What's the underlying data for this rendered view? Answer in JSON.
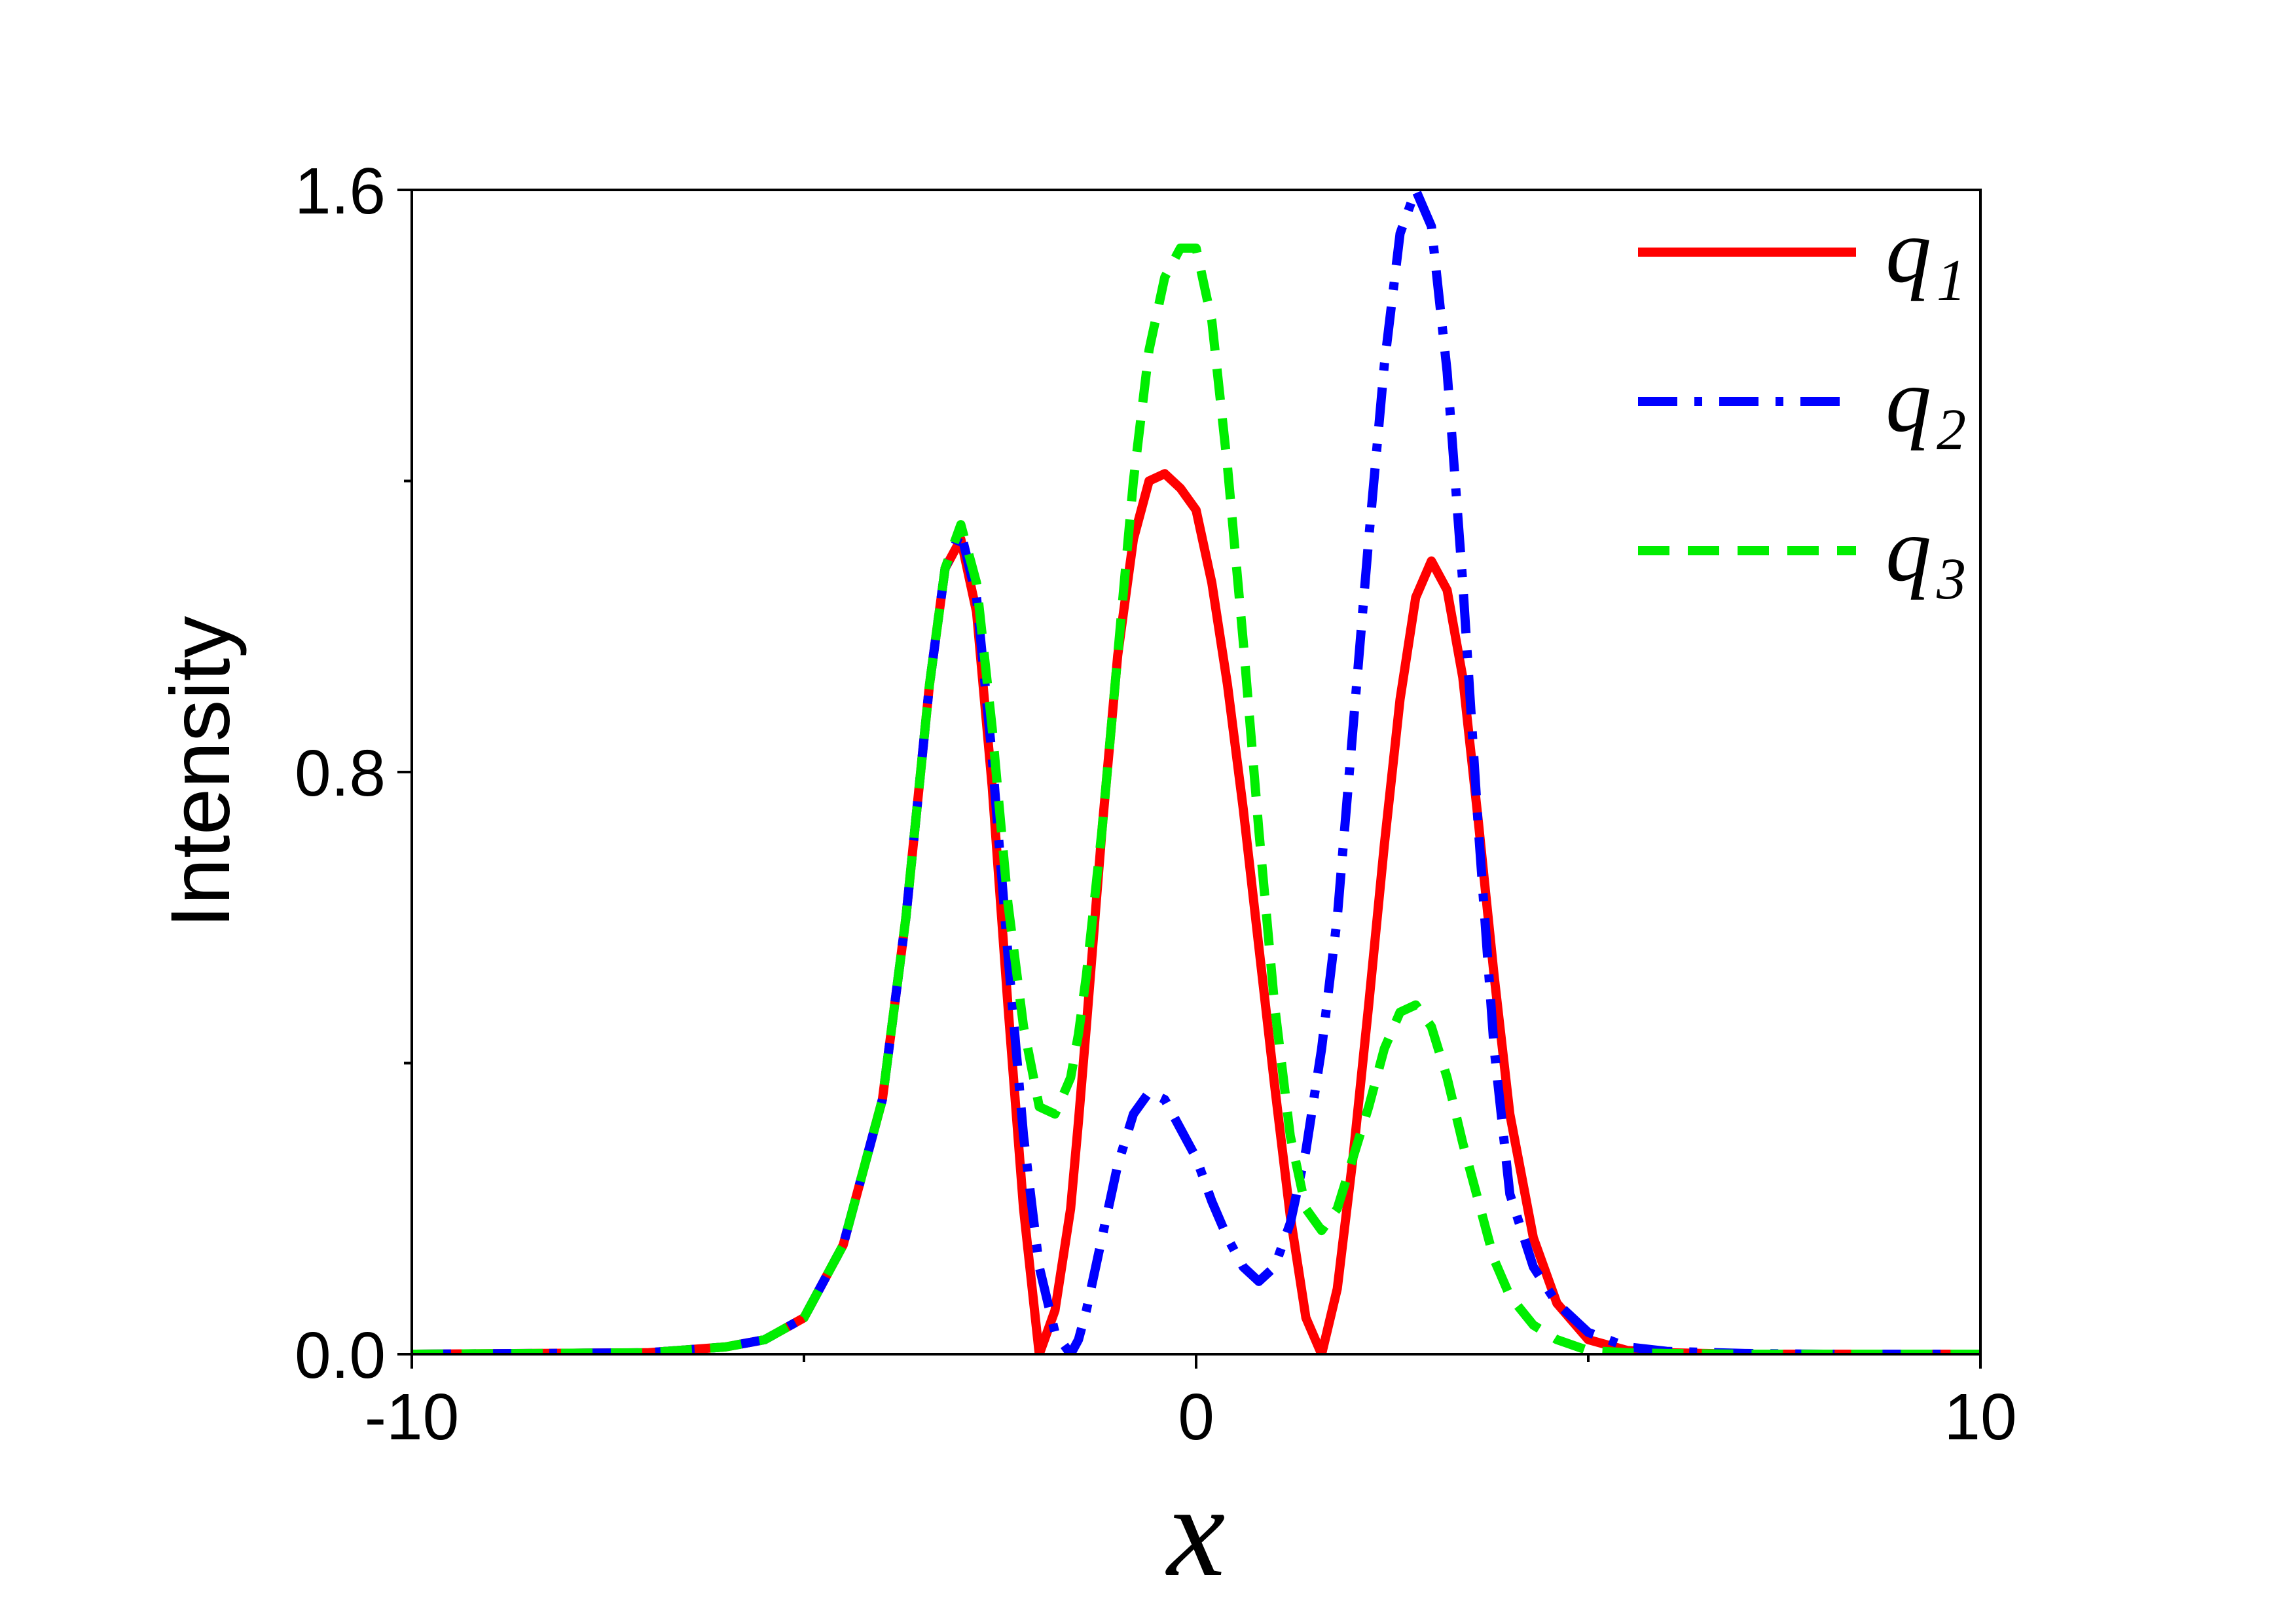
{
  "chart_data": {
    "type": "line",
    "xlabel": "x",
    "ylabel": "Intensity",
    "xlim": [
      -10,
      10
    ],
    "ylim": [
      0,
      1.6
    ],
    "x_ticks": [
      -10,
      0,
      10
    ],
    "x_minor_ticks": [
      -5,
      5
    ],
    "y_ticks": [
      0.0,
      0.8,
      1.6
    ],
    "y_tick_labels": [
      "0.0",
      "0.8",
      "1.6"
    ],
    "y_minor_ticks": [
      0.4,
      1.2
    ],
    "grid": false,
    "legend_position": "top-right",
    "x": [
      -10,
      -7,
      -6,
      -5.5,
      -5,
      -4.5,
      -4,
      -3.7,
      -3.4,
      -3.2,
      -3.0,
      -2.8,
      -2.6,
      -2.4,
      -2.2,
      -2.0,
      -1.8,
      -1.6,
      -1.5,
      -1.4,
      -1.2,
      -1.0,
      -0.8,
      -0.6,
      -0.4,
      -0.2,
      0.0,
      0.2,
      0.4,
      0.6,
      0.8,
      1.0,
      1.2,
      1.4,
      1.6,
      1.8,
      2.0,
      2.2,
      2.4,
      2.6,
      2.8,
      3.0,
      3.2,
      3.4,
      3.6,
      3.8,
      4.0,
      4.3,
      4.6,
      5.0,
      5.5,
      6.0,
      7.0,
      8.0,
      10.0
    ],
    "series": [
      {
        "name": "q1",
        "name_main": "q",
        "name_sub": "1",
        "color": "#ff0000",
        "dash": "solid",
        "values": [
          0.0,
          0.002,
          0.01,
          0.02,
          0.05,
          0.15,
          0.35,
          0.6,
          0.92,
          1.08,
          1.12,
          1.02,
          0.78,
          0.48,
          0.2,
          0.0,
          0.06,
          0.2,
          0.32,
          0.45,
          0.72,
          0.96,
          1.12,
          1.2,
          1.21,
          1.19,
          1.16,
          1.06,
          0.92,
          0.75,
          0.56,
          0.37,
          0.19,
          0.05,
          0.0,
          0.09,
          0.27,
          0.48,
          0.7,
          0.9,
          1.04,
          1.09,
          1.05,
          0.93,
          0.73,
          0.52,
          0.33,
          0.16,
          0.07,
          0.02,
          0.005,
          0.002,
          0.0,
          0.0,
          0.0
        ]
      },
      {
        "name": "q2",
        "name_main": "q",
        "name_sub": "2",
        "color": "#0000ff",
        "dash": "dashdot",
        "values": [
          0.0,
          0.002,
          0.01,
          0.02,
          0.05,
          0.15,
          0.35,
          0.6,
          0.92,
          1.08,
          1.13,
          1.04,
          0.82,
          0.55,
          0.3,
          0.12,
          0.03,
          0.0,
          0.02,
          0.06,
          0.16,
          0.26,
          0.33,
          0.36,
          0.35,
          0.31,
          0.27,
          0.21,
          0.16,
          0.12,
          0.1,
          0.12,
          0.18,
          0.28,
          0.42,
          0.6,
          0.86,
          1.12,
          1.36,
          1.54,
          1.6,
          1.55,
          1.35,
          1.06,
          0.72,
          0.42,
          0.22,
          0.12,
          0.07,
          0.03,
          0.01,
          0.004,
          0.001,
          0.0,
          0.0
        ]
      },
      {
        "name": "q3",
        "name_main": "q",
        "name_sub": "3",
        "color": "#00ee00",
        "dash": "dashed",
        "values": [
          0.0,
          0.002,
          0.01,
          0.02,
          0.05,
          0.15,
          0.35,
          0.6,
          0.92,
          1.08,
          1.14,
          1.06,
          0.86,
          0.62,
          0.45,
          0.34,
          0.33,
          0.38,
          0.44,
          0.52,
          0.72,
          0.96,
          1.2,
          1.38,
          1.48,
          1.52,
          1.52,
          1.42,
          1.22,
          0.98,
          0.72,
          0.48,
          0.3,
          0.2,
          0.17,
          0.2,
          0.27,
          0.34,
          0.42,
          0.47,
          0.48,
          0.45,
          0.38,
          0.29,
          0.21,
          0.13,
          0.08,
          0.04,
          0.02,
          0.005,
          0.002,
          0.001,
          0.0,
          0.0,
          0.0
        ]
      }
    ]
  }
}
